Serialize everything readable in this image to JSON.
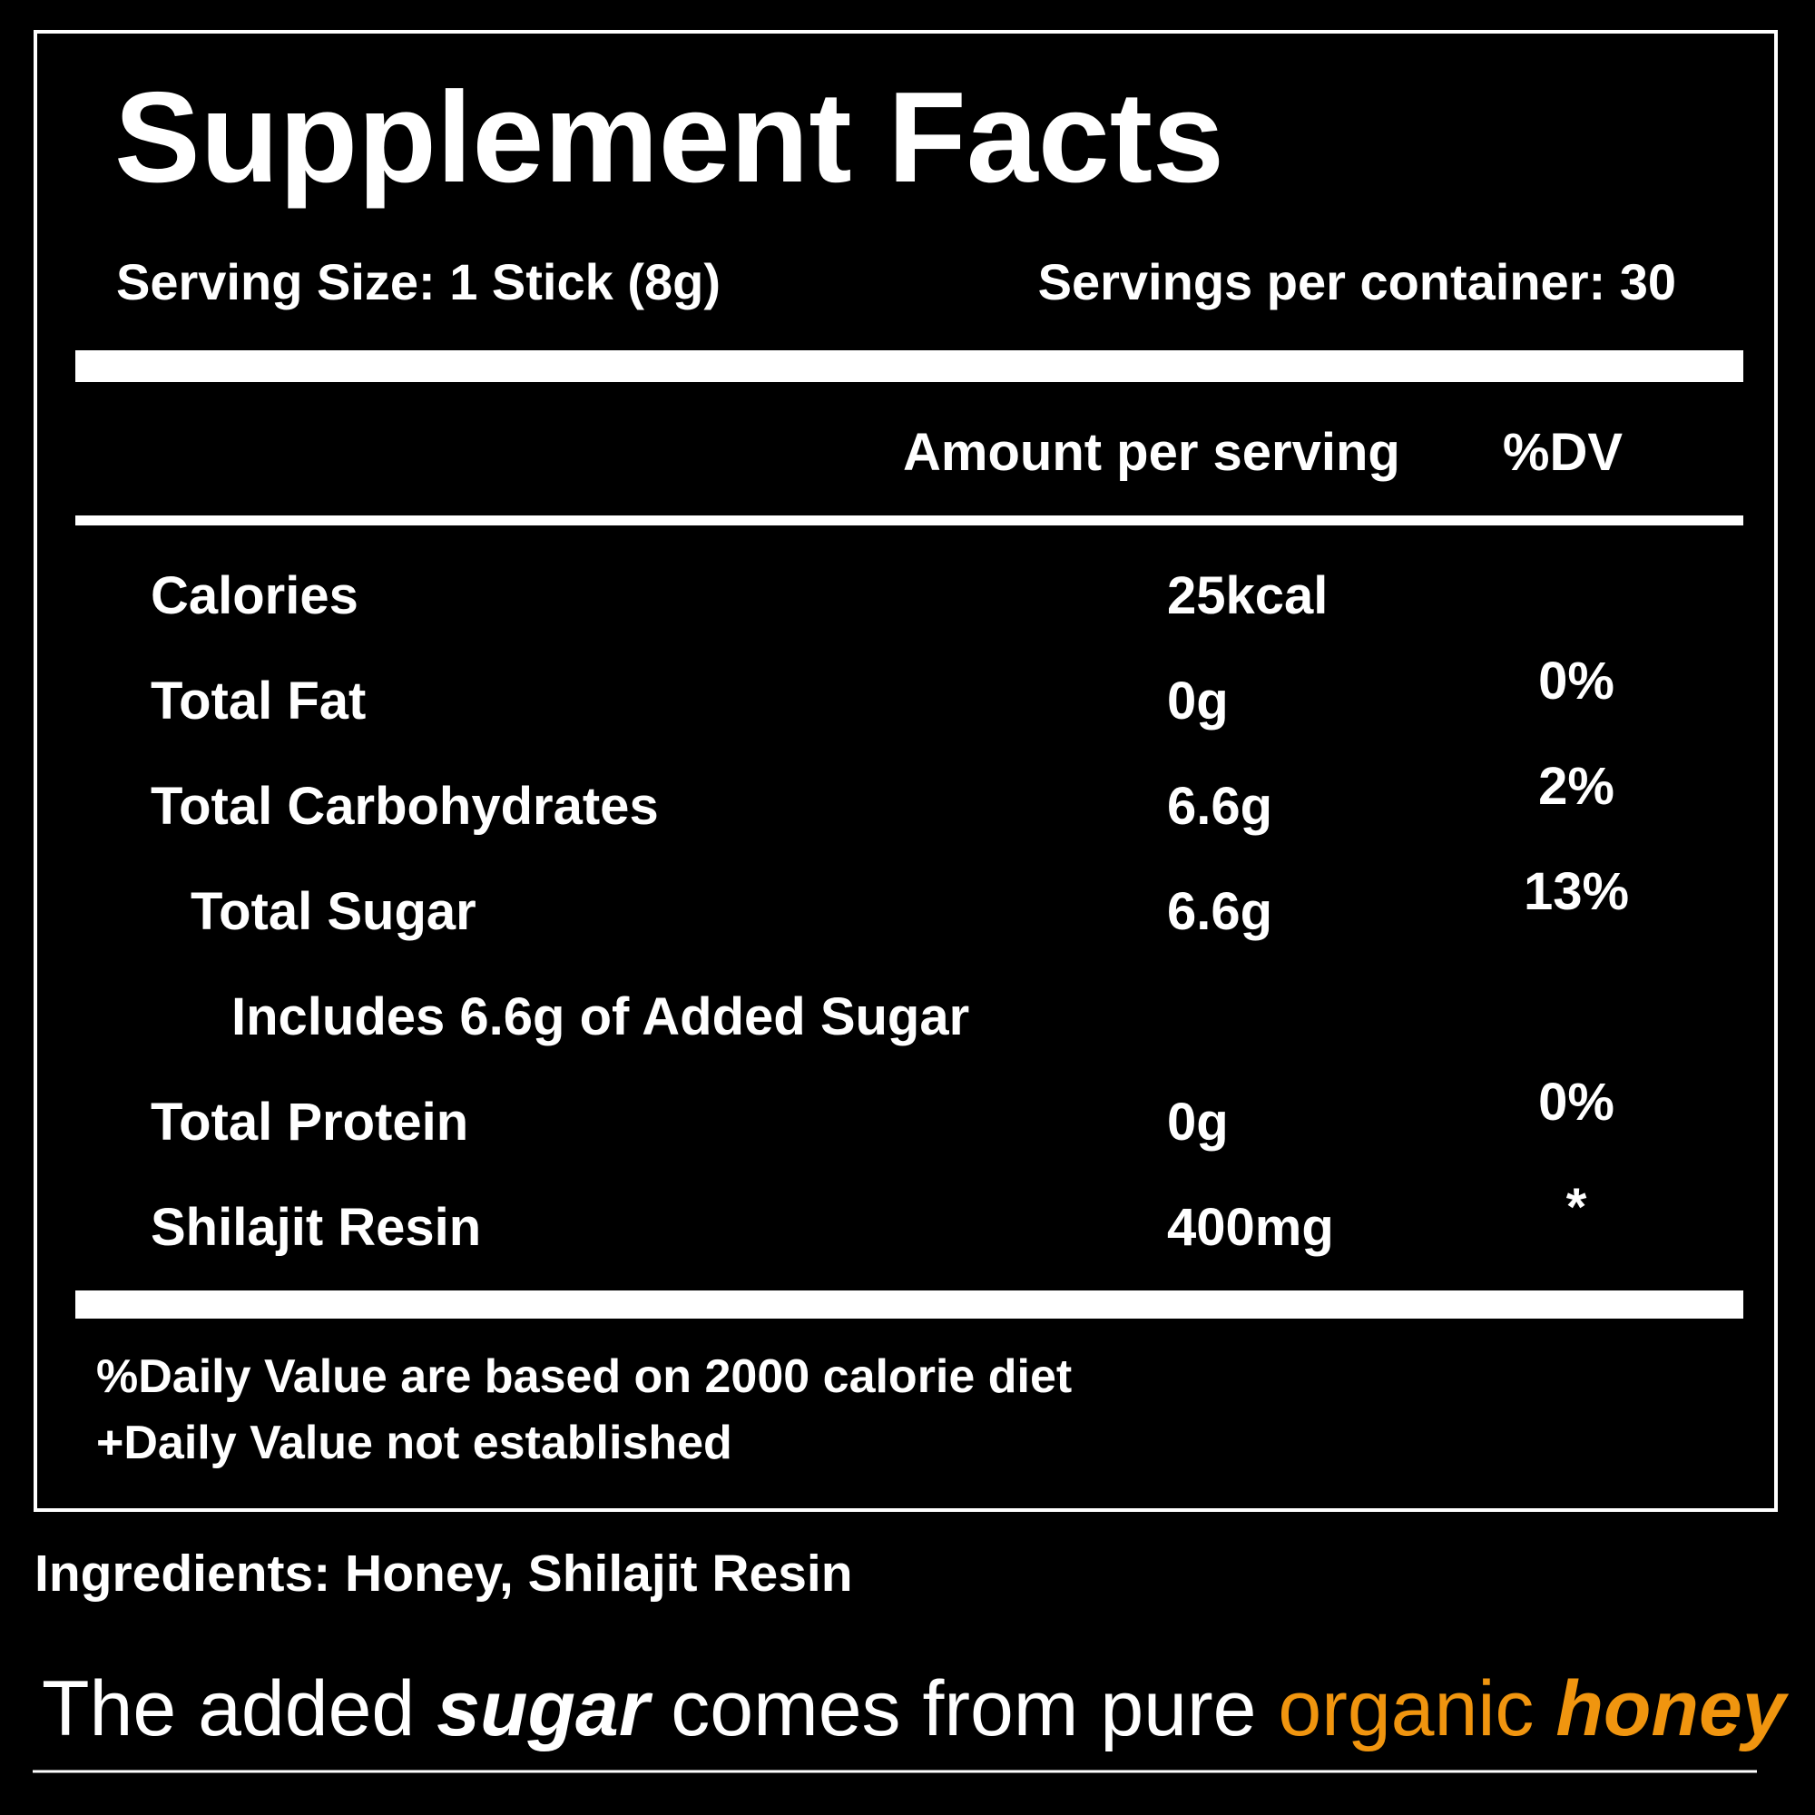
{
  "title": "Supplement Facts",
  "serving_size": "Serving Size: 1 Stick (8g)",
  "servings_per_container": "Servings per container: 30",
  "columns": [
    "Amount per serving",
    "%DV"
  ],
  "rows": [
    {
      "name": "Calories",
      "amount": "25kcal"
    },
    {
      "name": "Total Fat",
      "amount": "0g",
      "dv": "0%"
    },
    {
      "name": "Total Carbohydrates",
      "amount": "6.6g",
      "dv": "2%"
    },
    {
      "name": "Total Sugar",
      "amount": "6.6g",
      "dv": "13%"
    },
    {
      "name": "Includes 6.6g of Added Sugar"
    },
    {
      "name": "Total Protein",
      "amount": "0g",
      "dv": "0%"
    },
    {
      "name": "Shilajit Resin",
      "amount": "400mg",
      "dv": "*"
    }
  ],
  "footnotes": [
    "%Daily Value are based on 2000 calorie diet",
    "+Daily Value not established"
  ],
  "ingredients": "Ingredients: Honey, Shilajit Resin",
  "tagline": [
    "The added",
    "sugar",
    "comes from pure",
    "organic",
    "honey"
  ]
}
